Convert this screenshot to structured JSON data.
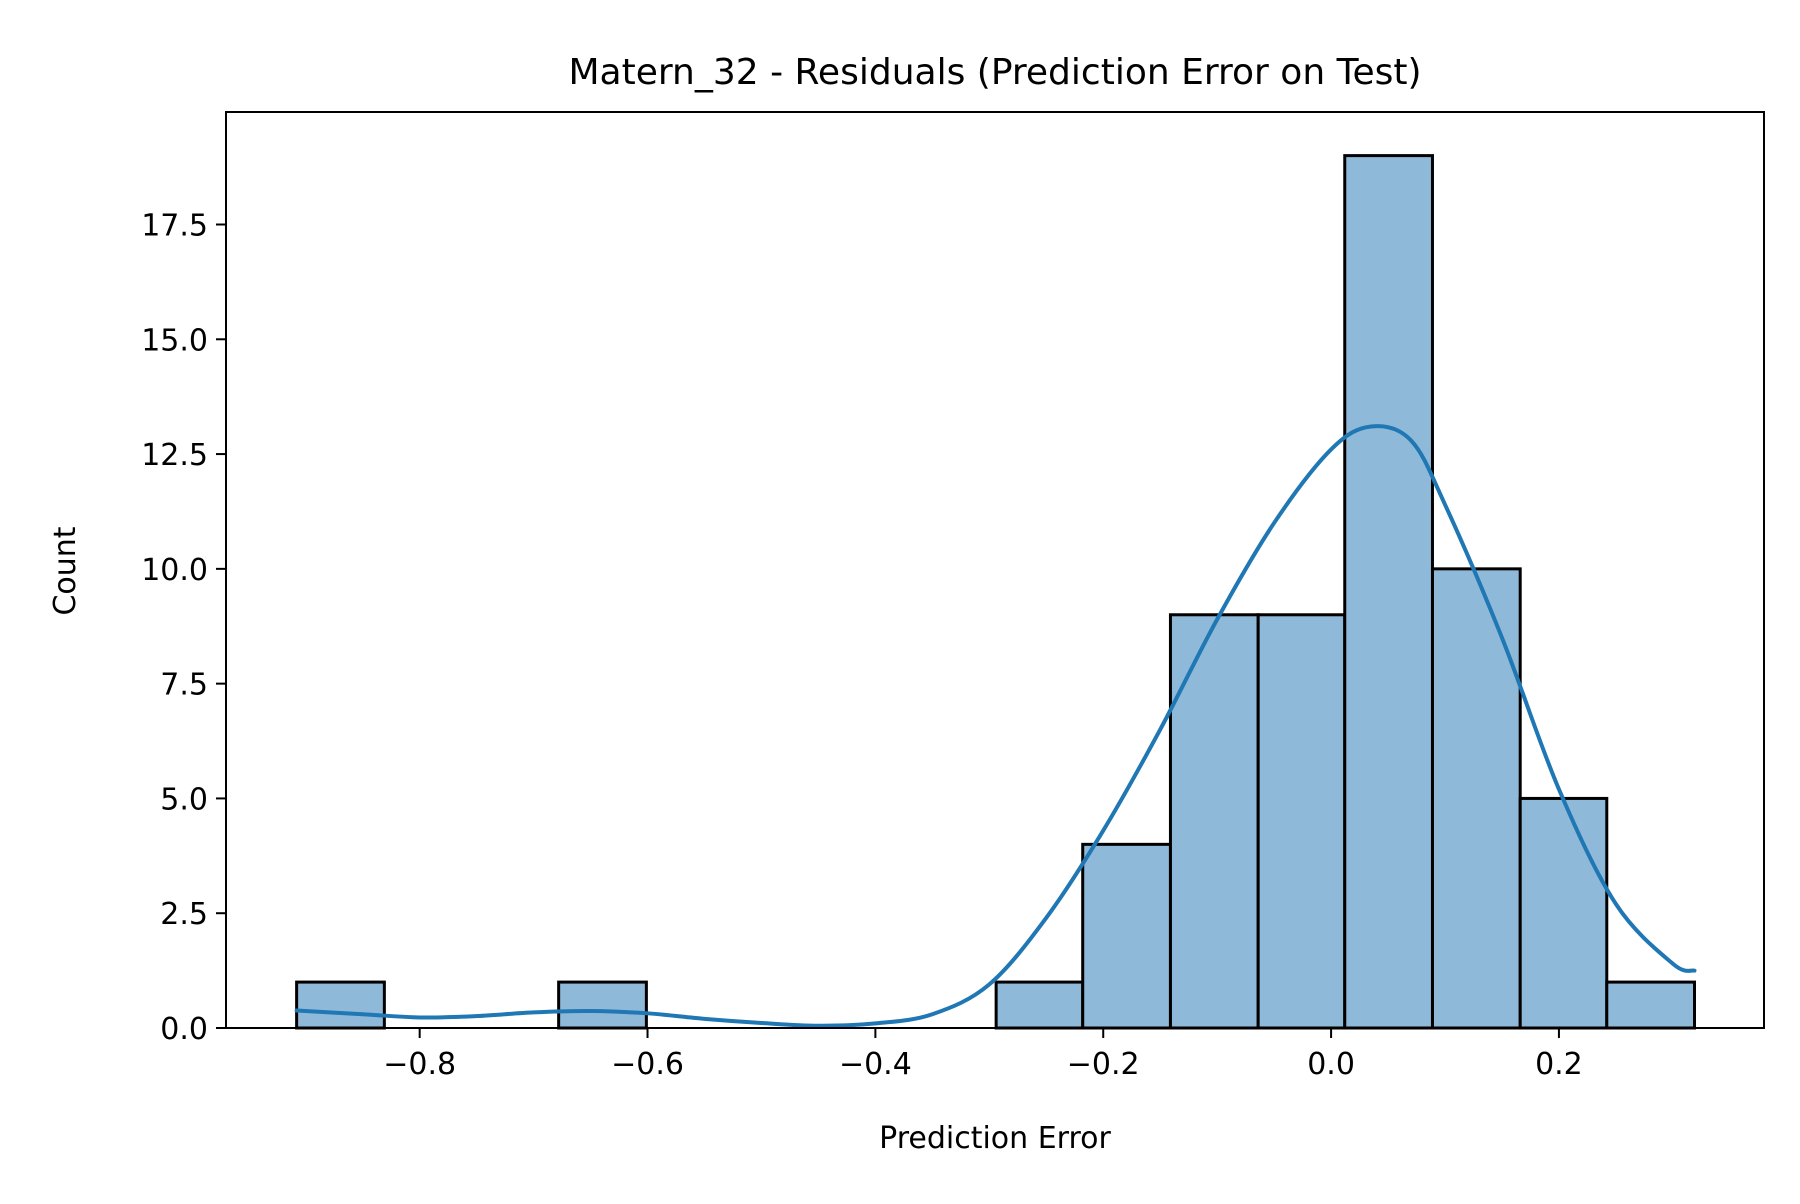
{
  "chart_data": {
    "type": "bar",
    "title": "Matern_32 - Residuals (Prediction Error on Test)",
    "xlabel": "Prediction Error",
    "ylabel": "Count",
    "xlim": [
      -0.97,
      0.38
    ],
    "ylim": [
      0,
      19.95
    ],
    "x_ticks": [
      -0.8,
      -0.6,
      -0.4,
      -0.2,
      0.0,
      0.2
    ],
    "x_tick_labels": [
      "−0.8",
      "−0.6",
      "−0.4",
      "−0.2",
      "0.0",
      "0.2"
    ],
    "y_ticks": [
      0,
      2.5,
      5.0,
      7.5,
      10.0,
      12.5,
      15.0,
      17.5
    ],
    "y_tick_labels": [
      "0.0",
      "2.5",
      "5.0",
      "7.5",
      "10.0",
      "12.5",
      "15.0",
      "17.5"
    ],
    "grid": false,
    "bin_edges": [
      -0.908,
      -0.831,
      -0.754,
      -0.678,
      -0.601,
      -0.524,
      -0.448,
      -0.371,
      -0.294,
      -0.218,
      -0.141,
      -0.064,
      0.012,
      0.089,
      0.166,
      0.242,
      0.319
    ],
    "counts": [
      1,
      0,
      0,
      1,
      0,
      0,
      0,
      0,
      1,
      4,
      9,
      9,
      19,
      10,
      5,
      1
    ],
    "bar_color": "#8fb9d9",
    "bar_edge_color": "#000000",
    "kde": {
      "color": "#1f77b4",
      "x": [
        -0.908,
        -0.85,
        -0.8,
        -0.75,
        -0.7,
        -0.65,
        -0.6,
        -0.55,
        -0.5,
        -0.45,
        -0.4,
        -0.35,
        -0.3,
        -0.25,
        -0.2,
        -0.15,
        -0.1,
        -0.05,
        0.0,
        0.035,
        0.07,
        0.1,
        0.15,
        0.2,
        0.25,
        0.3,
        0.319
      ],
      "y": [
        0.38,
        0.3,
        0.23,
        0.26,
        0.34,
        0.37,
        0.32,
        0.2,
        0.11,
        0.05,
        0.1,
        0.3,
        0.95,
        2.4,
        4.3,
        6.5,
        8.9,
        11.0,
        12.6,
        13.1,
        12.8,
        11.4,
        8.5,
        5.2,
        2.7,
        1.4,
        1.25
      ]
    }
  }
}
